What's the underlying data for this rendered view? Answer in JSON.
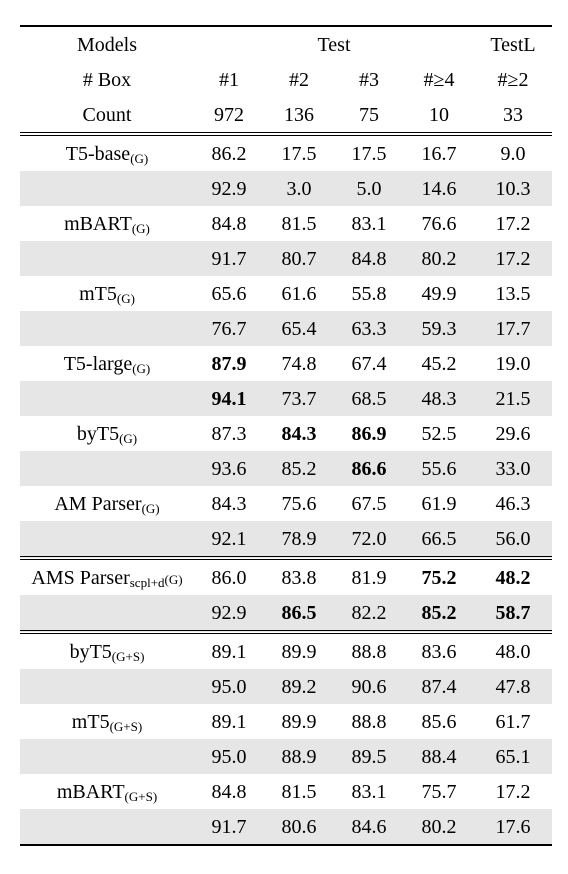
{
  "header": {
    "row1": [
      "Models",
      "Test",
      "TestL"
    ],
    "row2": [
      "# Box",
      "#1",
      "#2",
      "#3",
      "#≥4",
      "#≥2"
    ],
    "row3": [
      "Count",
      "972",
      "136",
      "75",
      "10",
      "33"
    ]
  },
  "groups": [
    {
      "rows": [
        {
          "model": "T5-base",
          "sub": "(G)",
          "cells": [
            "86.2",
            "17.5",
            "17.5",
            "16.7",
            "9.0"
          ],
          "bold": []
        },
        {
          "model": "",
          "sub": "",
          "cells": [
            "92.9",
            "3.0",
            "5.0",
            "14.6",
            "10.3"
          ],
          "bold": []
        },
        {
          "model": "mBART",
          "sub": "(G)",
          "cells": [
            "84.8",
            "81.5",
            "83.1",
            "76.6",
            "17.2"
          ],
          "bold": []
        },
        {
          "model": "",
          "sub": "",
          "cells": [
            "91.7",
            "80.7",
            "84.8",
            "80.2",
            "17.2"
          ],
          "bold": []
        },
        {
          "model": "mT5",
          "sub": "(G)",
          "cells": [
            "65.6",
            "61.6",
            "55.8",
            "49.9",
            "13.5"
          ],
          "bold": []
        },
        {
          "model": "",
          "sub": "",
          "cells": [
            "76.7",
            "65.4",
            "63.3",
            "59.3",
            "17.7"
          ],
          "bold": []
        },
        {
          "model": "T5-large",
          "sub": "(G)",
          "cells": [
            "87.9",
            "74.8",
            "67.4",
            "45.2",
            "19.0"
          ],
          "bold": [
            0
          ]
        },
        {
          "model": "",
          "sub": "",
          "cells": [
            "94.1",
            "73.7",
            "68.5",
            "48.3",
            "21.5"
          ],
          "bold": [
            0
          ]
        },
        {
          "model": "byT5",
          "sub": "(G)",
          "cells": [
            "87.3",
            "84.3",
            "86.9",
            "52.5",
            "29.6"
          ],
          "bold": [
            1,
            2
          ]
        },
        {
          "model": "",
          "sub": "",
          "cells": [
            "93.6",
            "85.2",
            "86.6",
            "55.6",
            "33.0"
          ],
          "bold": [
            2
          ]
        },
        {
          "model": "AM Parser",
          "sub": "(G)",
          "cells": [
            "84.3",
            "75.6",
            "67.5",
            "61.9",
            "46.3"
          ],
          "bold": []
        },
        {
          "model": "",
          "sub": "",
          "cells": [
            "92.1",
            "78.9",
            "72.0",
            "66.5",
            "56.0"
          ],
          "bold": []
        }
      ]
    },
    {
      "rows": [
        {
          "model": "AMS Parser",
          "sub": "scpl+d",
          "sub2": "(G)",
          "cells": [
            "86.0",
            "83.8",
            "81.9",
            "75.2",
            "48.2"
          ],
          "bold": [
            3,
            4
          ]
        },
        {
          "model": "",
          "sub": "",
          "cells": [
            "92.9",
            "86.5",
            "82.2",
            "85.2",
            "58.7"
          ],
          "bold": [
            1,
            3,
            4
          ]
        }
      ]
    },
    {
      "rows": [
        {
          "model": "byT5",
          "sub": "(G+S)",
          "cells": [
            "89.1",
            "89.9",
            "88.8",
            "83.6",
            "48.0"
          ],
          "bold": []
        },
        {
          "model": "",
          "sub": "",
          "cells": [
            "95.0",
            "89.2",
            "90.6",
            "87.4",
            "47.8"
          ],
          "bold": []
        },
        {
          "model": "mT5",
          "sub": "(G+S)",
          "cells": [
            "89.1",
            "89.9",
            "88.8",
            "85.6",
            "61.7"
          ],
          "bold": []
        },
        {
          "model": "",
          "sub": "",
          "cells": [
            "95.0",
            "88.9",
            "89.5",
            "88.4",
            "65.1"
          ],
          "bold": []
        },
        {
          "model": "mBART",
          "sub": "(G+S)",
          "cells": [
            "84.8",
            "81.5",
            "83.1",
            "75.7",
            "17.2"
          ],
          "bold": []
        },
        {
          "model": "",
          "sub": "",
          "cells": [
            "91.7",
            "80.6",
            "84.6",
            "80.2",
            "17.6"
          ],
          "bold": []
        }
      ]
    }
  ]
}
